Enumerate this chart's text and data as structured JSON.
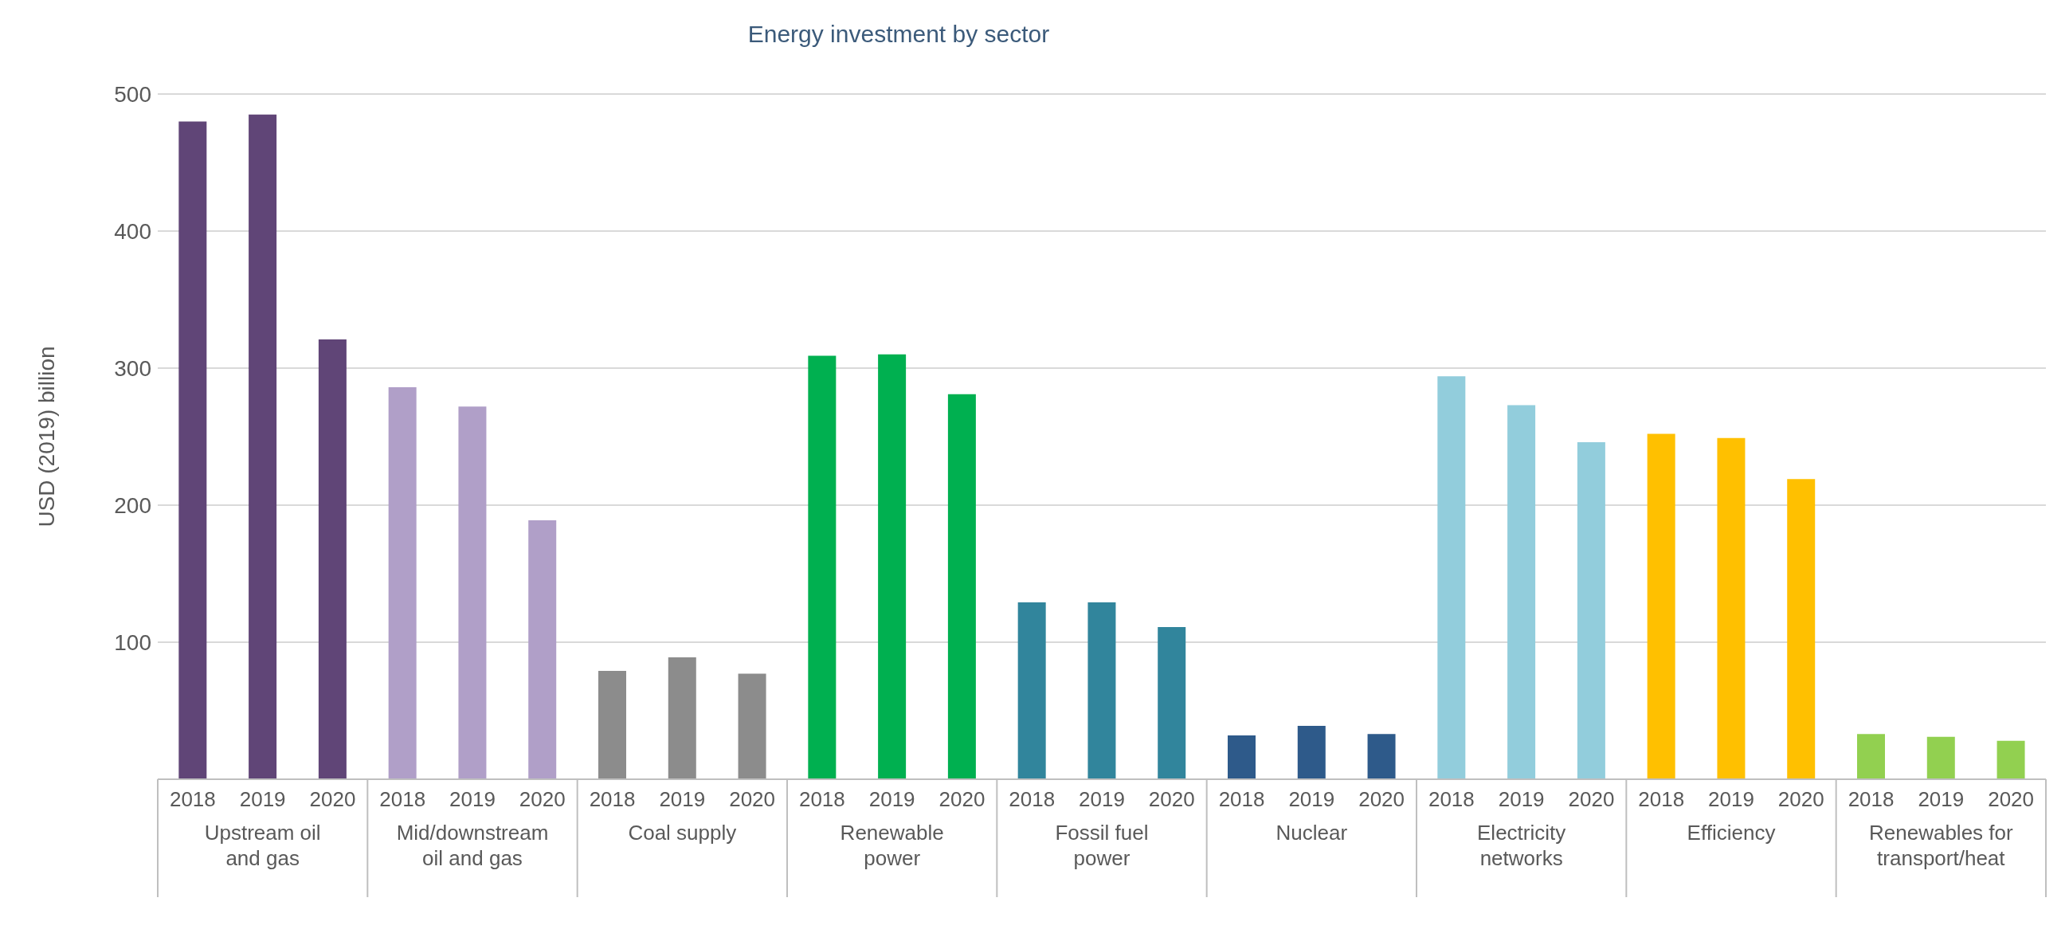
{
  "chart_data": {
    "type": "bar",
    "title": "Energy investment by sector",
    "ylabel": "USD (2019) billion",
    "categories": [
      "2018",
      "2019",
      "2020",
      "2018",
      "2019",
      "2020",
      "2018",
      "2019",
      "2020",
      "2018",
      "2019",
      "2020",
      "2018",
      "2019",
      "2020",
      "2018",
      "2019",
      "2020",
      "2018",
      "2019",
      "2020",
      "2018",
      "2019",
      "2020",
      "2018",
      "2019",
      "2020"
    ],
    "values": [
      480,
      485,
      321,
      286,
      272,
      189,
      79,
      89,
      77,
      309,
      310,
      281,
      129,
      129,
      111,
      32,
      39,
      33,
      294,
      273,
      246,
      252,
      249,
      219,
      33,
      31,
      28
    ],
    "colors": [
      "#604577",
      "#604577",
      "#604577",
      "#b09fc8",
      "#b09fc8",
      "#b09fc8",
      "#8c8c8c",
      "#8c8c8c",
      "#8c8c8c",
      "#00b050",
      "#00b050",
      "#00b050",
      "#31859c",
      "#31859c",
      "#31859c",
      "#2e5a8a",
      "#2e5a8a",
      "#2e5a8a",
      "#92cddc",
      "#92cddc",
      "#92cddc",
      "#ffc000",
      "#ffc000",
      "#ffc000",
      "#92d050",
      "#92d050",
      "#92d050"
    ],
    "annotations": [
      "Upstream oil and gas",
      "Mid/downstream oil and gas",
      "Coal supply",
      "Renewable power",
      "Fossil fuel power",
      "Nuclear",
      "Electricity networks",
      "Efficiency",
      "Renewables for transport/heat"
    ],
    "ylim": [
      0,
      500
    ],
    "yticks": [
      100,
      200,
      300,
      400,
      500
    ],
    "grid": "y"
  }
}
